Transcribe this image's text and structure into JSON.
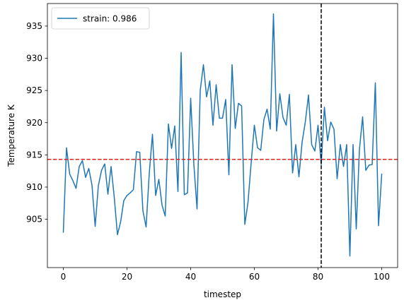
{
  "chart_data": {
    "type": "line",
    "title": "",
    "xlabel": "timestep",
    "ylabel": "Temperature K",
    "xlim": [
      -5,
      105
    ],
    "ylim": [
      897.5,
      938.5
    ],
    "xticks": [
      0,
      20,
      40,
      60,
      80,
      100
    ],
    "yticks": [
      905,
      910,
      915,
      920,
      925,
      930,
      935
    ],
    "grid": false,
    "legend_position": "top-left",
    "series": [
      {
        "name": "strain: 0.986",
        "color": "#1f77b4",
        "x": [
          0,
          1,
          2,
          3,
          4,
          5,
          6,
          7,
          8,
          9,
          10,
          11,
          12,
          13,
          14,
          15,
          16,
          17,
          18,
          19,
          20,
          21,
          22,
          23,
          24,
          25,
          26,
          27,
          28,
          29,
          30,
          31,
          32,
          33,
          34,
          35,
          36,
          37,
          38,
          39,
          40,
          41,
          42,
          43,
          44,
          45,
          46,
          47,
          48,
          49,
          50,
          51,
          52,
          53,
          54,
          55,
          56,
          57,
          58,
          59,
          60,
          61,
          62,
          63,
          64,
          65,
          66,
          67,
          68,
          69,
          70,
          71,
          72,
          73,
          74,
          75,
          76,
          77,
          78,
          79,
          80,
          81,
          82,
          83,
          84,
          85,
          86,
          87,
          88,
          89,
          90,
          91,
          92,
          93,
          94,
          95,
          96,
          97,
          98,
          99,
          100
        ],
        "y": [
          903.0,
          916.1,
          912.0,
          911.0,
          909.8,
          913.2,
          914.1,
          911.5,
          912.9,
          910.3,
          903.9,
          910.2,
          912.6,
          913.6,
          908.9,
          913.2,
          908.4,
          902.6,
          904.6,
          907.9,
          908.7,
          909.1,
          909.6,
          915.5,
          915.4,
          906.3,
          903.8,
          912.2,
          918.2,
          908.7,
          911.2,
          907.2,
          905.5,
          919.8,
          916.0,
          919.5,
          909.3,
          930.9,
          908.8,
          909.1,
          923.8,
          913.5,
          906.6,
          925.0,
          929.0,
          924.0,
          926.5,
          919.6,
          925.9,
          920.7,
          920.7,
          923.6,
          911.9,
          929.0,
          919.1,
          923.0,
          922.6,
          904.2,
          907.6,
          913.8,
          919.6,
          916.1,
          915.7,
          920.5,
          922.1,
          919.0,
          936.9,
          918.7,
          924.5,
          920.8,
          919.6,
          924.4,
          912.2,
          916.6,
          911.6,
          917.0,
          920.1,
          924.3,
          916.6,
          915.6,
          919.6,
          913.5,
          922.4,
          917.2,
          920.1,
          919.0,
          911.3,
          916.6,
          913.2,
          916.6,
          899.3,
          916.6,
          903.5,
          915.8,
          920.9,
          912.6,
          913.4,
          913.5,
          926.2,
          904.0,
          912.0
        ]
      }
    ],
    "reference_lines": [
      {
        "orientation": "horizontal",
        "value": 914.3,
        "color": "#d62728",
        "style": "dashed"
      },
      {
        "orientation": "vertical",
        "value": 81,
        "color": "#000000",
        "style": "dashed"
      }
    ]
  }
}
